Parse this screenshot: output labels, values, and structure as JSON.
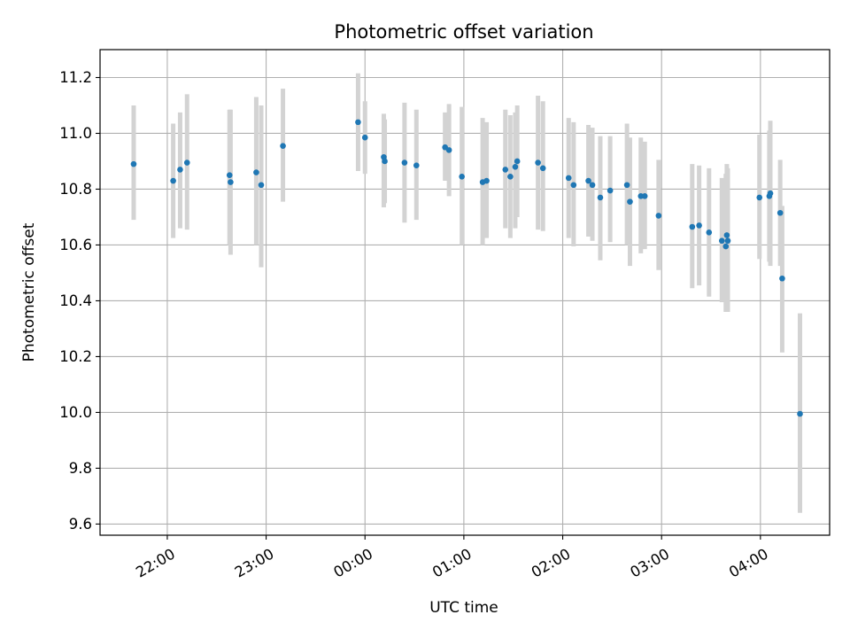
{
  "chart_data": {
    "type": "scatter",
    "title": "Photometric offset variation",
    "xlabel": "UTC time",
    "ylabel": "Photometric offset",
    "x_unit": "hours since 00:00 UTC",
    "xlim": [
      -2.68,
      4.7
    ],
    "ylim": [
      9.56,
      11.3
    ],
    "grid": true,
    "x_ticks": [
      {
        "value": -2,
        "label": "22:00"
      },
      {
        "value": -1,
        "label": "23:00"
      },
      {
        "value": 0,
        "label": "00:00"
      },
      {
        "value": 1,
        "label": "01:00"
      },
      {
        "value": 2,
        "label": "02:00"
      },
      {
        "value": 3,
        "label": "03:00"
      },
      {
        "value": 4,
        "label": "04:00"
      }
    ],
    "y_ticks": [
      {
        "value": 9.6,
        "label": "9.6"
      },
      {
        "value": 9.8,
        "label": "9.8"
      },
      {
        "value": 10.0,
        "label": "10.0"
      },
      {
        "value": 10.2,
        "label": "10.2"
      },
      {
        "value": 10.4,
        "label": "10.4"
      },
      {
        "value": 10.6,
        "label": "10.6"
      },
      {
        "value": 10.8,
        "label": "10.8"
      },
      {
        "value": 11.0,
        "label": "11.0"
      },
      {
        "value": 11.2,
        "label": "11.2"
      }
    ],
    "series": [
      {
        "name": "offset",
        "color": "#1f77b4",
        "error_color": "#d3d3d3",
        "points": [
          {
            "x": -2.34,
            "y": 10.89,
            "lo": 10.69,
            "hi": 11.1
          },
          {
            "x": -1.94,
            "y": 10.83,
            "lo": 10.625,
            "hi": 11.035
          },
          {
            "x": -1.87,
            "y": 10.87,
            "lo": 10.66,
            "hi": 11.075
          },
          {
            "x": -1.8,
            "y": 10.895,
            "lo": 10.655,
            "hi": 11.14
          },
          {
            "x": -1.37,
            "y": 10.85,
            "lo": 10.6,
            "hi": 11.085
          },
          {
            "x": -1.36,
            "y": 10.825,
            "lo": 10.565,
            "hi": 11.085
          },
          {
            "x": -1.1,
            "y": 10.86,
            "lo": 10.6,
            "hi": 11.13
          },
          {
            "x": -1.05,
            "y": 10.815,
            "lo": 10.52,
            "hi": 11.1
          },
          {
            "x": -0.83,
            "y": 10.955,
            "lo": 10.755,
            "hi": 11.16
          },
          {
            "x": -0.07,
            "y": 11.04,
            "lo": 10.865,
            "hi": 11.215
          },
          {
            "x": 0.0,
            "y": 10.985,
            "lo": 10.855,
            "hi": 11.115
          },
          {
            "x": 0.19,
            "y": 10.915,
            "lo": 10.735,
            "hi": 11.07
          },
          {
            "x": 0.2,
            "y": 10.9,
            "lo": 10.75,
            "hi": 11.05
          },
          {
            "x": 0.4,
            "y": 10.895,
            "lo": 10.68,
            "hi": 11.11
          },
          {
            "x": 0.52,
            "y": 10.885,
            "lo": 10.69,
            "hi": 11.085
          },
          {
            "x": 0.81,
            "y": 10.95,
            "lo": 10.83,
            "hi": 11.075
          },
          {
            "x": 0.85,
            "y": 10.94,
            "lo": 10.775,
            "hi": 11.105
          },
          {
            "x": 0.98,
            "y": 10.845,
            "lo": 10.6,
            "hi": 11.095
          },
          {
            "x": 1.19,
            "y": 10.825,
            "lo": 10.6,
            "hi": 11.055
          },
          {
            "x": 1.23,
            "y": 10.83,
            "lo": 10.625,
            "hi": 11.04
          },
          {
            "x": 1.42,
            "y": 10.87,
            "lo": 10.66,
            "hi": 11.085
          },
          {
            "x": 1.47,
            "y": 10.845,
            "lo": 10.625,
            "hi": 11.065
          },
          {
            "x": 1.52,
            "y": 10.88,
            "lo": 10.66,
            "hi": 11.075
          },
          {
            "x": 1.54,
            "y": 10.9,
            "lo": 10.7,
            "hi": 11.1
          },
          {
            "x": 1.75,
            "y": 10.895,
            "lo": 10.655,
            "hi": 11.135
          },
          {
            "x": 1.8,
            "y": 10.875,
            "lo": 10.65,
            "hi": 11.115
          },
          {
            "x": 2.06,
            "y": 10.84,
            "lo": 10.625,
            "hi": 11.055
          },
          {
            "x": 2.11,
            "y": 10.815,
            "lo": 10.595,
            "hi": 11.04
          },
          {
            "x": 2.26,
            "y": 10.83,
            "lo": 10.63,
            "hi": 11.03
          },
          {
            "x": 2.3,
            "y": 10.815,
            "lo": 10.615,
            "hi": 11.02
          },
          {
            "x": 2.38,
            "y": 10.77,
            "lo": 10.545,
            "hi": 10.99
          },
          {
            "x": 2.48,
            "y": 10.795,
            "lo": 10.61,
            "hi": 10.99
          },
          {
            "x": 2.65,
            "y": 10.815,
            "lo": 10.6,
            "hi": 11.035
          },
          {
            "x": 2.68,
            "y": 10.755,
            "lo": 10.525,
            "hi": 10.985
          },
          {
            "x": 2.79,
            "y": 10.775,
            "lo": 10.57,
            "hi": 10.985
          },
          {
            "x": 2.83,
            "y": 10.775,
            "lo": 10.585,
            "hi": 10.97
          },
          {
            "x": 2.97,
            "y": 10.705,
            "lo": 10.51,
            "hi": 10.905
          },
          {
            "x": 3.31,
            "y": 10.665,
            "lo": 10.445,
            "hi": 10.89
          },
          {
            "x": 3.38,
            "y": 10.67,
            "lo": 10.455,
            "hi": 10.885
          },
          {
            "x": 3.48,
            "y": 10.645,
            "lo": 10.415,
            "hi": 10.875
          },
          {
            "x": 3.61,
            "y": 10.615,
            "lo": 10.395,
            "hi": 10.84
          },
          {
            "x": 3.66,
            "y": 10.635,
            "lo": 10.38,
            "hi": 10.89
          },
          {
            "x": 3.67,
            "y": 10.615,
            "lo": 10.36,
            "hi": 10.875
          },
          {
            "x": 3.65,
            "y": 10.595,
            "lo": 10.36,
            "hi": 10.855
          },
          {
            "x": 3.99,
            "y": 10.77,
            "lo": 10.55,
            "hi": 10.995
          },
          {
            "x": 4.09,
            "y": 10.775,
            "lo": 10.54,
            "hi": 11.01
          },
          {
            "x": 4.1,
            "y": 10.785,
            "lo": 10.525,
            "hi": 11.045
          },
          {
            "x": 4.2,
            "y": 10.715,
            "lo": 10.525,
            "hi": 10.905
          },
          {
            "x": 4.22,
            "y": 10.48,
            "lo": 10.215,
            "hi": 10.74
          },
          {
            "x": 4.4,
            "y": 9.995,
            "lo": 9.64,
            "hi": 10.355
          }
        ]
      }
    ]
  }
}
